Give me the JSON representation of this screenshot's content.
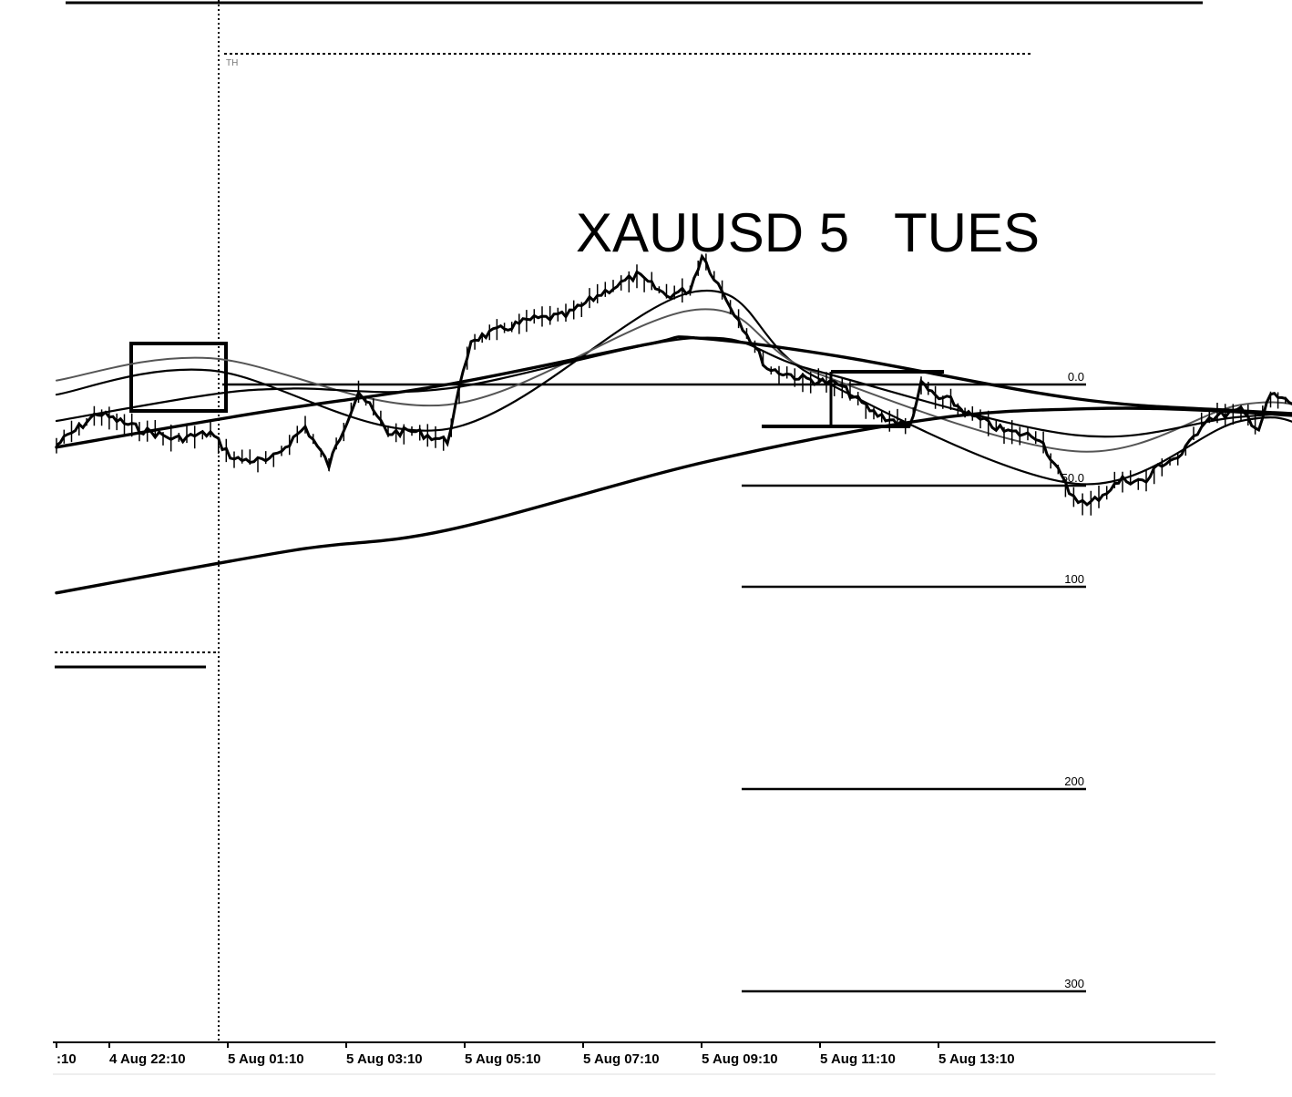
{
  "chart_data": {
    "type": "line",
    "title": "XAUUSD 5   TUES",
    "symbol": "XAUUSD",
    "timeframe_minutes": 5,
    "xlabel": "",
    "ylabel": "",
    "grid": false,
    "legend": "none",
    "colors": {
      "background": "#ffffff",
      "ink": "#000000",
      "ema_light": "#555555"
    },
    "x_ticks": [
      ":10",
      "4 Aug 22:10",
      "5 Aug 01:10",
      "5 Aug 03:10",
      "5 Aug 05:10",
      "5 Aug 07:10",
      "5 Aug 09:10",
      "5 Aug 11:10",
      "5 Aug 13:10"
    ],
    "fib_levels": [
      {
        "label": "0.0",
        "level": 0
      },
      {
        "label": "50.0",
        "level": 50
      },
      {
        "label": "100",
        "level": 100
      },
      {
        "label": "200",
        "level": 200
      },
      {
        "label": "300",
        "level": 300
      }
    ],
    "period_marker_label": "TH",
    "ylim": [
      -60,
      310
    ],
    "price_path": [
      [
        0,
        30
      ],
      [
        0.35,
        14
      ],
      [
        0.7,
        22
      ],
      [
        1.0,
        27
      ],
      [
        1.3,
        24
      ],
      [
        1.5,
        37
      ],
      [
        1.8,
        38
      ],
      [
        2.1,
        21
      ],
      [
        2.3,
        40
      ],
      [
        2.55,
        3
      ],
      [
        2.8,
        24
      ],
      [
        3.0,
        23
      ],
      [
        3.3,
        28
      ],
      [
        3.5,
        -22
      ],
      [
        3.75,
        -27
      ],
      [
        4.0,
        -32
      ],
      [
        4.3,
        -34
      ],
      [
        4.6,
        -45
      ],
      [
        4.9,
        -54
      ],
      [
        5.15,
        -44
      ],
      [
        5.35,
        -47
      ],
      [
        5.45,
        -64
      ],
      [
        5.62,
        -46
      ],
      [
        6.0,
        -8
      ],
      [
        6.3,
        -3
      ],
      [
        6.6,
        0
      ],
      [
        6.9,
        14
      ],
      [
        7.2,
        21
      ],
      [
        7.3,
        0
      ],
      [
        7.45,
        7
      ],
      [
        7.55,
        8
      ],
      [
        7.7,
        15
      ],
      [
        8.0,
        23
      ],
      [
        8.3,
        26
      ],
      [
        8.55,
        53
      ],
      [
        8.7,
        60
      ],
      [
        9.0,
        47
      ],
      [
        9.2,
        48
      ],
      [
        9.3,
        40
      ],
      [
        9.5,
        35
      ],
      [
        9.7,
        17
      ],
      [
        10.0,
        13
      ],
      [
        10.15,
        22
      ],
      [
        10.25,
        5
      ],
      [
        10.5,
        11
      ],
      [
        10.7,
        32
      ],
      [
        10.8,
        36
      ],
      [
        11.1,
        34
      ],
      [
        11.3,
        49
      ],
      [
        11.45,
        41
      ],
      [
        11.7,
        75
      ],
      [
        11.9,
        89
      ],
      [
        12.1,
        91
      ],
      [
        12.4,
        75
      ],
      [
        12.55,
        45
      ],
      [
        12.7,
        25
      ],
      [
        12.8,
        -19
      ],
      [
        12.95,
        4
      ],
      [
        13.1,
        1
      ],
      [
        13.2,
        22
      ],
      [
        13.35,
        21
      ],
      [
        13.5,
        20
      ],
      [
        13.7,
        27
      ],
      [
        13.9,
        19
      ],
      [
        14.05,
        24
      ],
      [
        14.1,
        27
      ],
      [
        14.2,
        52
      ],
      [
        14.4,
        96
      ],
      [
        14.6,
        103
      ],
      [
        14.8,
        107
      ],
      [
        15.0,
        106
      ],
      [
        15.2,
        123
      ],
      [
        15.35,
        135
      ],
      [
        15.45,
        110
      ],
      [
        15.6,
        167
      ],
      [
        15.75,
        168
      ],
      [
        15.9,
        182
      ],
      [
        16.0,
        206
      ],
      [
        16.2,
        218
      ],
      [
        16.4,
        216
      ],
      [
        16.6,
        222
      ],
      [
        16.8,
        210
      ],
      [
        17.0,
        258
      ],
      [
        17.2,
        269
      ],
      [
        17.4,
        271
      ],
      [
        17.55,
        280
      ],
      [
        17.75,
        282
      ],
      [
        17.85,
        300
      ],
      [
        17.95,
        298
      ],
      [
        18.1,
        287
      ]
    ],
    "moving_averages": [
      {
        "style": "thin",
        "points": [
          [
            0,
            5
          ],
          [
            1.3,
            -7
          ],
          [
            3.3,
            22
          ],
          [
            5.4,
            -46
          ],
          [
            6.4,
            -4
          ],
          [
            8.6,
            49
          ],
          [
            10.0,
            18
          ],
          [
            10.7,
            25
          ],
          [
            12.0,
            66
          ],
          [
            12.4,
            63
          ],
          [
            13.2,
            21
          ],
          [
            14.1,
            22
          ],
          [
            14.6,
            45
          ],
          [
            15.7,
            122
          ],
          [
            16.6,
            200
          ],
          [
            17.3,
            270
          ],
          [
            18.1,
            313
          ]
        ]
      },
      {
        "style": "light",
        "points": [
          [
            0,
            -2
          ],
          [
            1.3,
            -13
          ],
          [
            3.3,
            10
          ],
          [
            5.4,
            -37
          ],
          [
            6.4,
            -6
          ],
          [
            8.6,
            33
          ],
          [
            10.0,
            10
          ],
          [
            10.7,
            14
          ],
          [
            11.4,
            33
          ],
          [
            12.6,
            46
          ],
          [
            13.4,
            24
          ],
          [
            14.1,
            18
          ],
          [
            15.1,
            60
          ],
          [
            16.2,
            122
          ],
          [
            17.3,
            200
          ],
          [
            18.1,
            244
          ]
        ]
      },
      {
        "style": "thin",
        "points": [
          [
            0,
            18
          ],
          [
            1.3,
            5
          ],
          [
            2.0,
            2
          ],
          [
            3.3,
            2
          ],
          [
            5.4,
            -23
          ],
          [
            6.4,
            -7
          ],
          [
            8.6,
            25
          ],
          [
            10.0,
            16
          ],
          [
            11.2,
            13
          ],
          [
            12.4,
            19
          ],
          [
            13.3,
            22
          ],
          [
            14.1,
            19
          ],
          [
            14.6,
            34
          ],
          [
            15.5,
            70
          ],
          [
            16.5,
            125
          ],
          [
            17.3,
            170
          ],
          [
            18.1,
            196
          ]
        ]
      },
      {
        "style": "thick",
        "points": [
          [
            0,
            31
          ],
          [
            1.7,
            14
          ],
          [
            3.3,
            0
          ],
          [
            5.0,
            -20
          ],
          [
            5.4,
            -23
          ],
          [
            6.6,
            -14
          ],
          [
            8.6,
            7
          ],
          [
            10.0,
            13
          ],
          [
            11.5,
            17
          ],
          [
            13.3,
            19
          ],
          [
            14.1,
            20
          ],
          [
            15.2,
            28
          ],
          [
            16.5,
            50
          ],
          [
            17.5,
            80
          ],
          [
            18.1,
            107
          ]
        ]
      },
      {
        "style": "thick",
        "points": [
          [
            0,
            103
          ],
          [
            2.0,
            82
          ],
          [
            3.3,
            72
          ],
          [
            5.5,
            38
          ],
          [
            7.4,
            17
          ],
          [
            8.7,
            12
          ],
          [
            9.8,
            13
          ],
          [
            11.5,
            19
          ],
          [
            13.3,
            20
          ],
          [
            14.1,
            20
          ]
        ]
      }
    ]
  }
}
